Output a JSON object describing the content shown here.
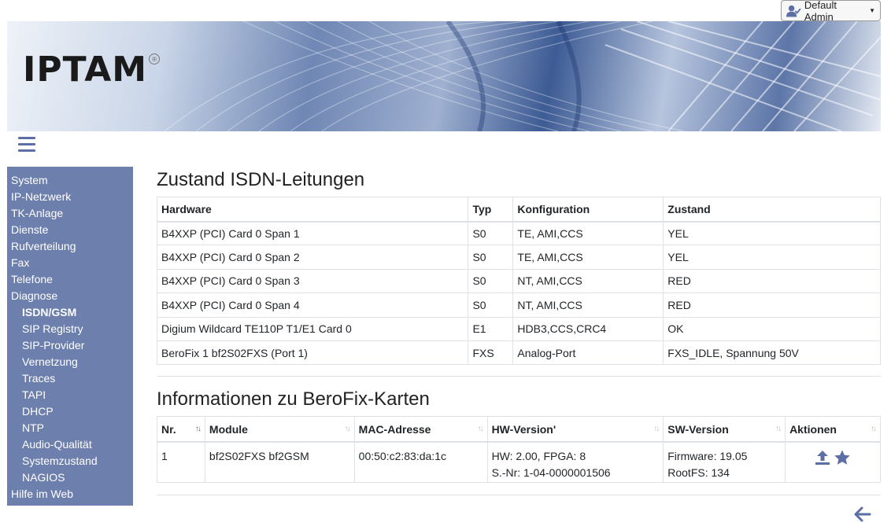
{
  "header": {
    "user_button_label": "Default Admin",
    "logo_text": "IPTAM",
    "logo_mark": "®",
    "icons": {
      "user": "user-check-icon",
      "caret": "caret-down-icon",
      "menu": "hamburger-menu-icon",
      "back": "arrow-left-icon"
    }
  },
  "sidebar": {
    "items": [
      {
        "label": "System",
        "level": 0,
        "active": false
      },
      {
        "label": "IP-Netzwerk",
        "level": 0,
        "active": false
      },
      {
        "label": "TK-Anlage",
        "level": 0,
        "active": false
      },
      {
        "label": "Dienste",
        "level": 0,
        "active": false
      },
      {
        "label": "Rufverteilung",
        "level": 0,
        "active": false
      },
      {
        "label": "Fax",
        "level": 0,
        "active": false
      },
      {
        "label": "Telefone",
        "level": 0,
        "active": false
      },
      {
        "label": "Diagnose",
        "level": 0,
        "active": false
      },
      {
        "label": "ISDN/GSM",
        "level": 1,
        "active": true
      },
      {
        "label": "SIP Registry",
        "level": 1,
        "active": false
      },
      {
        "label": "SIP-Provider",
        "level": 1,
        "active": false
      },
      {
        "label": "Vernetzung",
        "level": 1,
        "active": false
      },
      {
        "label": "Traces",
        "level": 1,
        "active": false
      },
      {
        "label": "TAPI",
        "level": 1,
        "active": false
      },
      {
        "label": "DHCP",
        "level": 1,
        "active": false
      },
      {
        "label": "NTP",
        "level": 1,
        "active": false
      },
      {
        "label": "Audio-Qualität",
        "level": 1,
        "active": false
      },
      {
        "label": "Systemzustand",
        "level": 1,
        "active": false
      },
      {
        "label": "NAGIOS",
        "level": 1,
        "active": false
      },
      {
        "label": "Hilfe im Web",
        "level": 0,
        "active": false
      }
    ],
    "color": "#6d7fad"
  },
  "isdn": {
    "title": "Zustand ISDN-Leitungen",
    "columns": [
      "Hardware",
      "Typ",
      "Konfiguration",
      "Zustand"
    ],
    "rows": [
      [
        "B4XXP (PCI) Card 0 Span 1",
        "S0",
        "TE, AMI,CCS",
        "YEL"
      ],
      [
        "B4XXP (PCI) Card 0 Span 2",
        "S0",
        "TE, AMI,CCS",
        "YEL"
      ],
      [
        "B4XXP (PCI) Card 0 Span 3",
        "S0",
        "NT, AMI,CCS",
        "RED"
      ],
      [
        "B4XXP (PCI) Card 0 Span 4",
        "S0",
        "NT, AMI,CCS",
        "RED"
      ],
      [
        "Digium Wildcard TE110P T1/E1 Card 0",
        "E1",
        "HDB3,CCS,CRC4",
        "OK"
      ],
      [
        "BeroFix 1 bf2S02FXS (Port 1)",
        "FXS",
        "Analog-Port",
        "FXS_IDLE, Spannung 50V"
      ]
    ]
  },
  "berofix": {
    "title": "Informationen zu BeroFix-Karten",
    "columns": [
      "Nr.",
      "Module",
      "MAC-Adresse",
      "HW-Version'",
      "SW-Version",
      "Aktionen"
    ],
    "sort_glyph": "↑↓",
    "rows": [
      {
        "nr": "1",
        "module": "bf2S02FXS bf2GSM",
        "mac": "00:50:c2:83:da:1c",
        "hw_line1": "HW: 2.00, FPGA: 8",
        "hw_line2": "S.-Nr: 1-04-0000001506",
        "sw_line1": "Firmware: 19.05",
        "sw_line2": "RootFS: 134",
        "actions": [
          "upload-icon",
          "star-icon"
        ]
      }
    ],
    "action_color": "#5b6fa6"
  }
}
